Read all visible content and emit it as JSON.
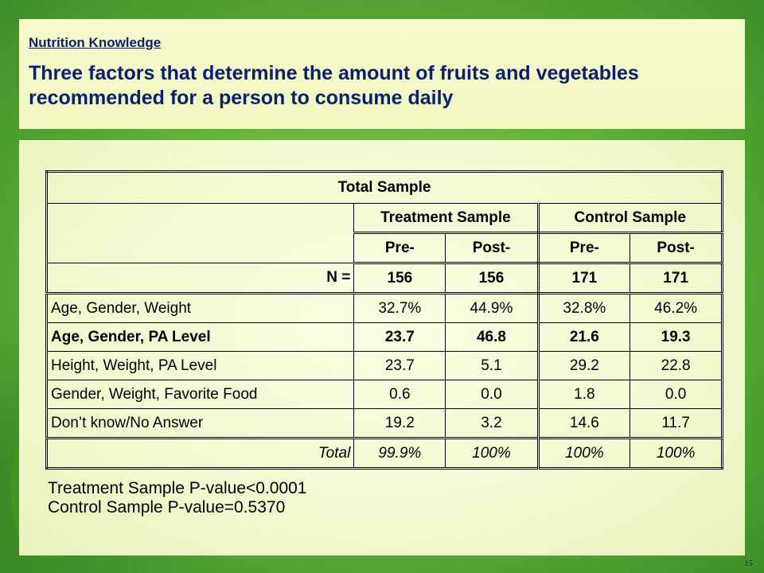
{
  "header": {
    "section": "Nutrition Knowledge",
    "title": "Three factors that determine the amount of fruits and vegetables recommended for a person to consume daily"
  },
  "table": {
    "caption": "Total Sample",
    "groups": [
      "Treatment Sample",
      "Control Sample"
    ],
    "phases": [
      "Pre-",
      "Post-",
      "Pre-",
      "Post-"
    ],
    "n_label": "N =",
    "n_values": [
      "156",
      "156",
      "171",
      "171"
    ],
    "rows": [
      {
        "label": "Age, Gender, Weight",
        "values": [
          "32.7%",
          "44.9%",
          "32.8%",
          "46.2%"
        ],
        "bold": false
      },
      {
        "label": "Age, Gender, PA Level",
        "values": [
          "23.7",
          "46.8",
          "21.6",
          "19.3"
        ],
        "bold": true
      },
      {
        "label": "Height, Weight, PA Level",
        "values": [
          "23.7",
          "5.1",
          "29.2",
          "22.8"
        ],
        "bold": false
      },
      {
        "label": "Gender, Weight, Favorite Food",
        "values": [
          "0.6",
          "0.0",
          "1.8",
          "0.0"
        ],
        "bold": false
      },
      {
        "label": "Don’t know/No Answer",
        "values": [
          "19.2",
          "3.2",
          "14.6",
          "11.7"
        ],
        "bold": false
      }
    ],
    "total_label": "Total",
    "total_values": [
      "99.9%",
      "100%",
      "100%",
      "100%"
    ]
  },
  "pvalues": {
    "treatment": "Treatment Sample P-value<0.0001",
    "control": "Control Sample P-value=0.5370"
  },
  "page_number": "15",
  "colors": {
    "title_text": "#0a1f6e",
    "panel_bg": "#f6f9cc",
    "background_green": "#5fae38"
  }
}
